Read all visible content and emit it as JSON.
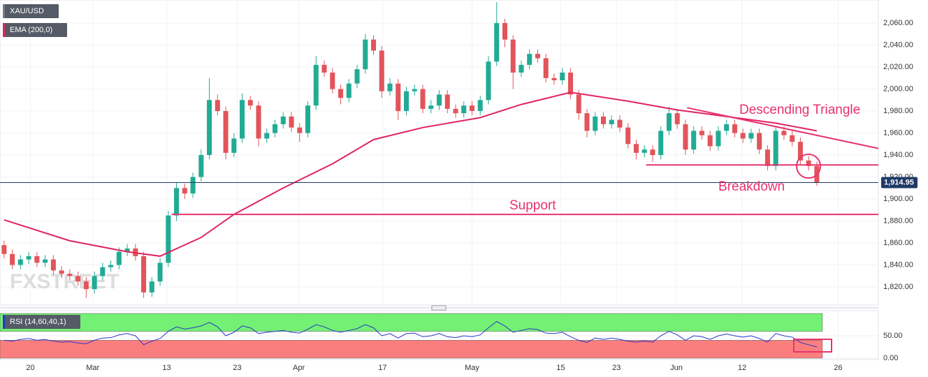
{
  "chart_data": [
    {
      "type": "candlestick",
      "watermark": "FXSTREET",
      "xlim": [
        -0.5,
        106.5
      ],
      "xticks": [
        {
          "value": 3.2,
          "label": "20"
        },
        {
          "value": 10.8,
          "label": "Mar"
        },
        {
          "value": 19.8,
          "label": "13"
        },
        {
          "value": 28.4,
          "label": "23"
        },
        {
          "value": 35.9,
          "label": "Apr"
        },
        {
          "value": 46.1,
          "label": "17"
        },
        {
          "value": 57.0,
          "label": "May"
        },
        {
          "value": 67.8,
          "label": "15"
        },
        {
          "value": 74.6,
          "label": "23"
        },
        {
          "value": 81.9,
          "label": "Jun"
        },
        {
          "value": 89.9,
          "label": "12"
        },
        {
          "value": 101.6,
          "label": "26"
        }
      ],
      "ylim": [
        1803.5,
        2081
      ],
      "yticks": [
        {
          "value": 1820,
          "label": "1,820.00"
        },
        {
          "value": 1840,
          "label": "1,840.00"
        },
        {
          "value": 1860,
          "label": "1,860.00"
        },
        {
          "value": 1880,
          "label": "1,880.00"
        },
        {
          "value": 1900,
          "label": "1,900.00"
        },
        {
          "value": 1920,
          "label": "1,920.00"
        },
        {
          "value": 1940,
          "label": "1,940.00"
        },
        {
          "value": 1960,
          "label": "1,960.00"
        },
        {
          "value": 1980,
          "label": "1,980.00"
        },
        {
          "value": 2000,
          "label": "2,000.00"
        },
        {
          "value": 2020,
          "label": "2,020.00"
        },
        {
          "value": 2040,
          "label": "2,040.00"
        },
        {
          "value": 2060,
          "label": "2,060.00"
        }
      ],
      "grid": true,
      "series": [
        {
          "name": "XAU/USD",
          "color": "#787b86",
          "up_color": "#22ab94",
          "down_color": "#e2545a",
          "open": [
            1858,
            1850,
            1840,
            1845,
            1848,
            1842,
            1845,
            1835,
            1832,
            1830,
            1825,
            1818,
            1830,
            1838,
            1840,
            1852,
            1855,
            1848,
            1815,
            1825,
            1842,
            1885,
            1910,
            1905,
            1920,
            1940,
            1990,
            1980,
            1942,
            1955,
            1990,
            1985,
            1955,
            1960,
            1968,
            1975,
            1965,
            1960,
            1985,
            2022,
            2015,
            2000,
            1992,
            2005,
            2018,
            2045,
            2035,
            1998,
            2005,
            1980,
            1998,
            2000,
            1982,
            1985,
            1995,
            1982,
            1978,
            1985,
            1980,
            1990,
            2025,
            2060,
            2045,
            2015,
            2022,
            2032,
            2028,
            2010,
            2008,
            2015,
            1995,
            1978,
            1962,
            1975,
            1968,
            1972,
            1965,
            1950,
            1942,
            1945,
            1940,
            1962,
            1978,
            1968,
            1945,
            1962,
            1958,
            1948,
            1962,
            1968,
            1960,
            1955,
            1960,
            1945,
            1930,
            1962,
            1958,
            1952,
            1935,
            1930
          ],
          "high": [
            1862,
            1854,
            1849,
            1852,
            1852,
            1849,
            1849,
            1839,
            1836,
            1834,
            1829,
            1834,
            1842,
            1844,
            1856,
            1859,
            1859,
            1852,
            1829,
            1846,
            1889,
            1915,
            1914,
            1924,
            1945,
            2010,
            1995,
            1984,
            1960,
            1996,
            1994,
            1989,
            1964,
            1972,
            1979,
            1979,
            1969,
            1989,
            2030,
            2026,
            2019,
            2004,
            2009,
            2022,
            2050,
            2049,
            2039,
            2010,
            2009,
            2002,
            2004,
            2004,
            1990,
            1999,
            1999,
            1986,
            1989,
            1989,
            1994,
            2030,
            2079,
            2064,
            2049,
            2026,
            2036,
            2036,
            2032,
            2014,
            2019,
            2019,
            1999,
            1982,
            1979,
            1979,
            1976,
            1976,
            1969,
            1954,
            1949,
            1949,
            1966,
            1984,
            1982,
            1972,
            1966,
            1966,
            1962,
            1966,
            1972,
            1972,
            1964,
            1964,
            1964,
            1949,
            1966,
            1966,
            1962,
            1956,
            1939,
            1934
          ],
          "low": [
            1846,
            1836,
            1836,
            1841,
            1838,
            1838,
            1831,
            1828,
            1826,
            1821,
            1810,
            1814,
            1826,
            1834,
            1836,
            1848,
            1844,
            1810,
            1811,
            1821,
            1838,
            1880,
            1900,
            1901,
            1916,
            1936,
            1976,
            1936,
            1938,
            1951,
            1981,
            1948,
            1951,
            1956,
            1964,
            1961,
            1952,
            1956,
            1981,
            2011,
            1996,
            1986,
            1988,
            2001,
            2014,
            2031,
            1992,
            1994,
            1972,
            1976,
            1994,
            1978,
            1978,
            1981,
            1978,
            1974,
            1974,
            1976,
            1976,
            1986,
            2021,
            2038,
            2000,
            2011,
            2018,
            2024,
            2006,
            2004,
            2004,
            1991,
            1972,
            1956,
            1958,
            1964,
            1964,
            1961,
            1946,
            1936,
            1938,
            1934,
            1936,
            1958,
            1964,
            1940,
            1941,
            1954,
            1944,
            1944,
            1958,
            1956,
            1951,
            1951,
            1941,
            1926,
            1926,
            1954,
            1948,
            1931,
            1926,
            1912
          ],
          "close": [
            1850,
            1840,
            1845,
            1848,
            1842,
            1845,
            1835,
            1832,
            1830,
            1825,
            1818,
            1830,
            1838,
            1840,
            1852,
            1855,
            1848,
            1815,
            1825,
            1842,
            1885,
            1910,
            1905,
            1920,
            1940,
            1990,
            1980,
            1942,
            1955,
            1990,
            1985,
            1955,
            1960,
            1968,
            1975,
            1965,
            1960,
            1985,
            2022,
            2015,
            2000,
            1992,
            2005,
            2018,
            2045,
            2035,
            1998,
            2005,
            1980,
            1998,
            2000,
            1982,
            1985,
            1995,
            1982,
            1978,
            1985,
            1980,
            1990,
            2025,
            2060,
            2045,
            2015,
            2022,
            2032,
            2028,
            2010,
            2008,
            2015,
            1995,
            1978,
            1962,
            1975,
            1968,
            1972,
            1965,
            1950,
            1942,
            1945,
            1940,
            1962,
            1978,
            1968,
            1945,
            1962,
            1958,
            1948,
            1962,
            1968,
            1960,
            1955,
            1960,
            1945,
            1930,
            1962,
            1958,
            1952,
            1935,
            1930,
            1915
          ]
        },
        {
          "name": "EMA (200,0)",
          "type": "line",
          "color": "#e0245e",
          "x": [
            0,
            8,
            15,
            19,
            24,
            28,
            34,
            40,
            45,
            51,
            58,
            63,
            69,
            76,
            82,
            88,
            94,
            99
          ],
          "values": [
            1881,
            1862,
            1852,
            1848,
            1865,
            1886,
            1910,
            1932,
            1954,
            1965,
            1974,
            1986,
            1997,
            1989,
            1981,
            1975,
            1969,
            1962
          ]
        }
      ],
      "last_price": {
        "value": 1914.95,
        "label": "1,914.95"
      },
      "annotations": [
        {
          "text": "Descending Triangle",
          "x": [
            83.2,
            106.5
          ],
          "y": [
            1983,
            1946
          ]
        },
        {
          "text": "Breakdown",
          "x": [
            78.2,
            106.5
          ],
          "y": [
            1931,
            1931
          ]
        },
        {
          "text": "Support",
          "x": [
            20.4,
            106.5
          ],
          "y": [
            1886,
            1886
          ]
        }
      ],
      "annotation_color": "#e8336e"
    },
    {
      "type": "line",
      "ylim": [
        0,
        100
      ],
      "yticks": [
        {
          "value": 0,
          "label": "0.00"
        },
        {
          "value": 50,
          "label": "50.00"
        }
      ],
      "zones": [
        {
          "from": 60,
          "to": 100,
          "color": "#74f074"
        },
        {
          "from": 0,
          "to": 40,
          "color": "#fb7e7e"
        }
      ],
      "series": [
        {
          "name": "RSI (14,60,40,1)",
          "color": "#2637c9",
          "values": [
            40,
            38,
            42,
            44,
            40,
            42,
            38,
            36,
            37,
            34,
            32,
            40,
            45,
            46,
            52,
            55,
            50,
            30,
            38,
            44,
            60,
            70,
            65,
            68,
            72,
            80,
            70,
            50,
            58,
            72,
            68,
            55,
            58,
            60,
            62,
            58,
            56,
            65,
            75,
            70,
            62,
            58,
            62,
            66,
            75,
            68,
            50,
            55,
            45,
            55,
            56,
            48,
            50,
            55,
            48,
            46,
            50,
            48,
            52,
            68,
            82,
            72,
            58,
            62,
            66,
            64,
            56,
            55,
            58,
            48,
            40,
            35,
            45,
            42,
            45,
            42,
            38,
            36,
            38,
            36,
            50,
            60,
            52,
            40,
            50,
            48,
            42,
            50,
            54,
            50,
            47,
            50,
            44,
            36,
            55,
            50,
            47,
            35,
            30,
            25
          ]
        }
      ]
    }
  ]
}
